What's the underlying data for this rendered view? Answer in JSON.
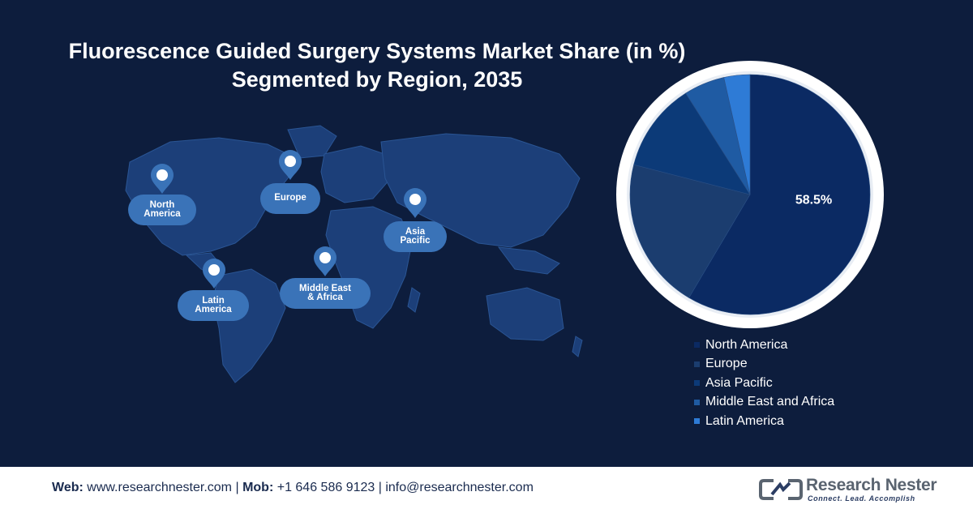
{
  "header": {
    "title_line1": "Fluorescence Guided Surgery Systems Market Share (in %)",
    "title_line2": "Segmented by Region, 2035"
  },
  "map": {
    "labels": [
      {
        "id": "north-america",
        "line1": "North",
        "line2": "America"
      },
      {
        "id": "europe",
        "line1": "Europe",
        "line2": ""
      },
      {
        "id": "asia-pacific",
        "line1": "Asia",
        "line2": "Pacific"
      },
      {
        "id": "latin-america",
        "line1": "Latin",
        "line2": "America"
      },
      {
        "id": "middle-east-africa",
        "line1": "Middle East",
        "line2": "& Africa"
      }
    ]
  },
  "chart_data": {
    "type": "pie",
    "title": "Fluorescence Guided Surgery Systems Market Share (in %) Segmented by Region, 2035",
    "categories": [
      "North America",
      "Europe",
      "Asia Pacific",
      "Middle East and Africa",
      "Latin America"
    ],
    "values": [
      58.5,
      20.5,
      12.0,
      5.5,
      3.5
    ],
    "data_labels": [
      "58.5%",
      "",
      "",
      "",
      ""
    ],
    "colors": [
      "#0b2a63",
      "#1b3d6f",
      "#0c3a78",
      "#1f5ba3",
      "#2e7bd6"
    ],
    "legend_position": "bottom-right"
  },
  "footer": {
    "web_label": "Web:",
    "web": "www.researchnester.com",
    "mob_label": "Mob:",
    "mob": "+1 646 586 9123",
    "email": "info@researchnester.com",
    "separator": "|",
    "brand": "Research Nester",
    "tagline": "Connect. Lead. Accomplish"
  },
  "colors": {
    "background": "#0d1d3d",
    "map_fill": "#1c3f79",
    "label_fill": "#3a73b8",
    "pie_ring": "#ffffff"
  }
}
